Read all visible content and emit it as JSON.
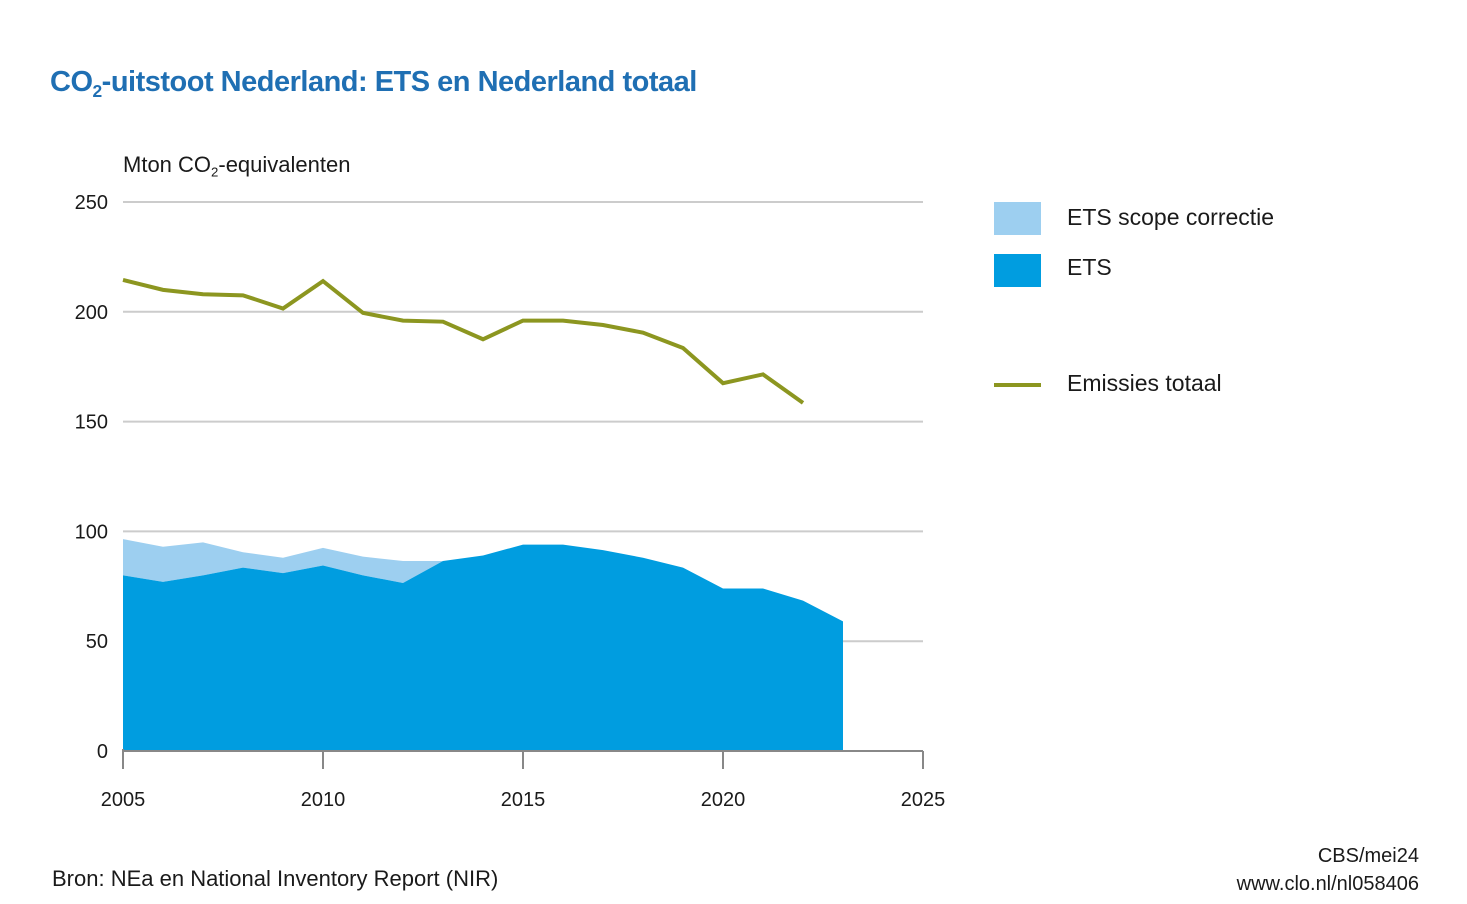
{
  "chart_data": {
    "type": "area",
    "title_parts": {
      "pre": "CO",
      "sub": "2",
      "post": "-uitstoot Nederland: ETS en Nederland totaal"
    },
    "ylabel_parts": {
      "pre": "Mton CO",
      "sub": "2",
      "post": "-equivalenten"
    },
    "xlabel": "",
    "xlim": [
      2005,
      2025
    ],
    "ylim": [
      0,
      250
    ],
    "x_ticks": [
      2005,
      2010,
      2015,
      2020,
      2025
    ],
    "y_ticks": [
      0,
      50,
      100,
      150,
      200,
      250
    ],
    "grid": "horizontal",
    "legend_position": "right",
    "series": [
      {
        "name": "ETS",
        "kind": "area",
        "color": "#009de0",
        "x": [
          2005,
          2006,
          2007,
          2008,
          2009,
          2010,
          2011,
          2012,
          2013,
          2014,
          2015,
          2016,
          2017,
          2018,
          2019,
          2020,
          2021,
          2022,
          2023
        ],
        "values": [
          80,
          77,
          80,
          83.5,
          81,
          84.5,
          80,
          76.5,
          86.5,
          89,
          94,
          94,
          91.5,
          88,
          83.5,
          74,
          74,
          68.5,
          59
        ]
      },
      {
        "name": "ETS scope correctie",
        "kind": "stacked-area",
        "color": "#9dcff0",
        "x": [
          2005,
          2006,
          2007,
          2008,
          2009,
          2010,
          2011,
          2012,
          2013
        ],
        "values": [
          16.5,
          16,
          15,
          7,
          7,
          8,
          8.5,
          10,
          0
        ]
      },
      {
        "name": "Emissies totaal",
        "kind": "line",
        "color": "#8c9620",
        "x": [
          2005,
          2006,
          2007,
          2008,
          2009,
          2010,
          2011,
          2012,
          2013,
          2014,
          2015,
          2016,
          2017,
          2018,
          2019,
          2020,
          2021,
          2022
        ],
        "values": [
          214.5,
          210,
          208,
          207.5,
          201.5,
          214,
          199.5,
          196,
          195.5,
          187.5,
          196,
          196,
          194,
          190.5,
          183.5,
          167.5,
          171.5,
          158.5
        ]
      }
    ]
  },
  "legend": [
    {
      "label": "ETS scope correctie",
      "color": "#9dcff0",
      "kind": "box"
    },
    {
      "label": "ETS",
      "color": "#009de0",
      "kind": "box"
    },
    {
      "label": "Emissies totaal",
      "color": "#8c9620",
      "kind": "line"
    }
  ],
  "footer": {
    "source": "Bron: NEa en National Inventory Report (NIR)",
    "credit": "CBS/mei24",
    "url": "www.clo.nl/nl058406"
  }
}
